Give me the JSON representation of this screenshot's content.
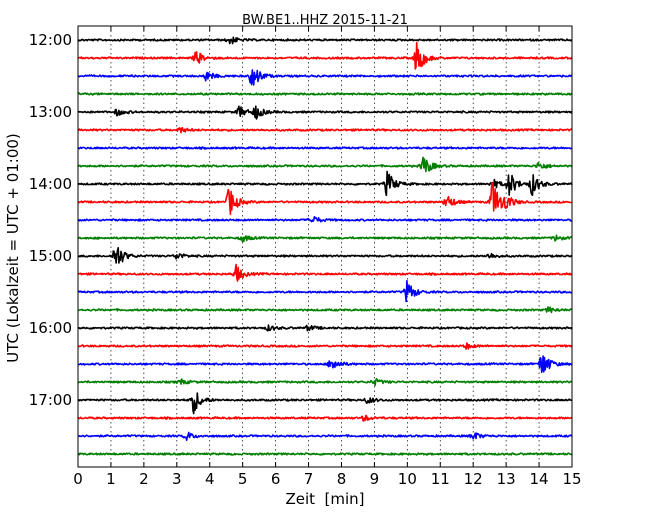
{
  "chart_data": {
    "type": "line",
    "title": "BW.BE1..HHZ 2015-11-21",
    "xlabel": "Zeit  [min]",
    "ylabel": "UTC (Lokalzeit = UTC + 01:00)",
    "xlim": [
      0,
      15
    ],
    "x_ticks": [
      "0",
      "1",
      "2",
      "3",
      "4",
      "5",
      "6",
      "7",
      "8",
      "9",
      "10",
      "11",
      "12",
      "13",
      "14",
      "15"
    ],
    "y_ticks": [
      "12:00",
      "13:00",
      "14:00",
      "15:00",
      "16:00",
      "17:00"
    ],
    "grid": "vertical dotted",
    "line_colors": [
      "#000000",
      "#ff0000",
      "#0000ff",
      "#007f00"
    ],
    "traces": [
      {
        "start": "12:00",
        "events": [
          [
            4.6,
            0.35
          ]
        ]
      },
      {
        "start": "12:15",
        "events": [
          [
            10.3,
            1.3
          ],
          [
            3.6,
            0.5
          ]
        ]
      },
      {
        "start": "12:30",
        "events": [
          [
            5.3,
            1.0
          ],
          [
            3.9,
            0.35
          ]
        ]
      },
      {
        "start": "12:45",
        "events": []
      },
      {
        "start": "13:00",
        "events": [
          [
            5.4,
            0.5
          ],
          [
            4.9,
            0.4
          ],
          [
            1.2,
            0.25
          ]
        ]
      },
      {
        "start": "13:15",
        "events": [
          [
            3.1,
            0.2
          ]
        ]
      },
      {
        "start": "13:30",
        "events": []
      },
      {
        "start": "13:45",
        "events": [
          [
            10.5,
            0.8
          ],
          [
            14.0,
            0.3
          ]
        ]
      },
      {
        "start": "14:00",
        "events": [
          [
            9.4,
            0.95
          ],
          [
            13.1,
            0.9
          ],
          [
            13.8,
            0.8
          ],
          [
            12.6,
            0.35
          ]
        ]
      },
      {
        "start": "14:15",
        "events": [
          [
            12.6,
            1.6
          ],
          [
            4.6,
            1.1
          ],
          [
            11.2,
            0.55
          ],
          [
            13.0,
            0.45
          ]
        ]
      },
      {
        "start": "14:30",
        "events": [
          [
            7.1,
            0.35
          ]
        ]
      },
      {
        "start": "14:45",
        "events": [
          [
            5.0,
            0.25
          ],
          [
            14.5,
            0.2
          ]
        ]
      },
      {
        "start": "15:00",
        "events": [
          [
            1.15,
            1.1
          ],
          [
            3.0,
            0.25
          ],
          [
            12.5,
            0.2
          ]
        ]
      },
      {
        "start": "15:15",
        "events": [
          [
            4.8,
            0.65
          ]
        ]
      },
      {
        "start": "15:30",
        "events": [
          [
            10.0,
            0.85
          ]
        ]
      },
      {
        "start": "15:45",
        "events": [
          [
            14.3,
            0.2
          ]
        ]
      },
      {
        "start": "16:00",
        "events": [
          [
            7.0,
            0.2
          ],
          [
            5.8,
            0.2
          ]
        ]
      },
      {
        "start": "16:15",
        "events": [
          [
            11.8,
            0.2
          ]
        ]
      },
      {
        "start": "16:30",
        "events": [
          [
            14.1,
            1.0
          ],
          [
            7.7,
            0.55
          ]
        ]
      },
      {
        "start": "16:45",
        "events": [
          [
            9.0,
            0.25
          ],
          [
            3.1,
            0.2
          ]
        ]
      },
      {
        "start": "17:00",
        "events": [
          [
            3.5,
            1.0
          ],
          [
            8.8,
            0.25
          ]
        ]
      },
      {
        "start": "17:15",
        "events": [
          [
            8.7,
            0.2
          ]
        ]
      },
      {
        "start": "17:30",
        "events": [
          [
            3.3,
            0.3
          ],
          [
            12.0,
            0.3
          ]
        ]
      },
      {
        "start": "17:45",
        "events": []
      }
    ]
  }
}
